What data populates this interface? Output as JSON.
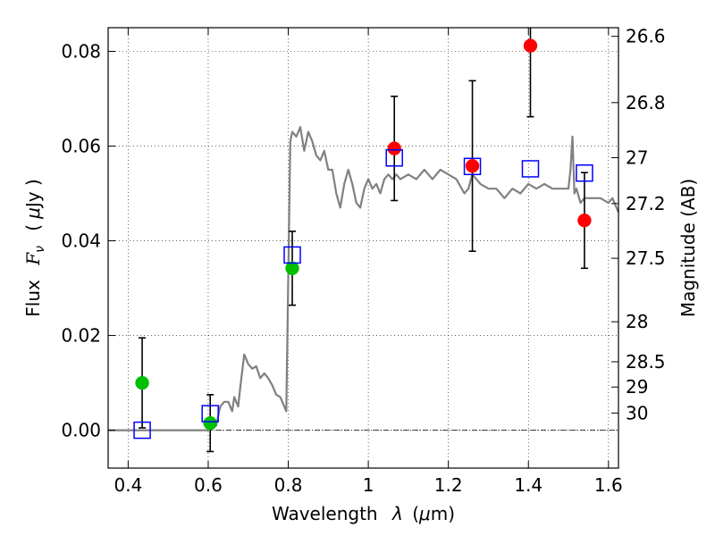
{
  "chart_data": {
    "type": "scatter",
    "xlabel": "Wavelength",
    "xlabel_symbol": "λ",
    "xlabel_unit_open": "(",
    "xlabel_unit_mu": "μ",
    "xlabel_unit_rest": "m)",
    "ylabel": "Flux",
    "ylabel_symbol": "F",
    "ylabel_sub": "ν",
    "ylabel_unit_open": "(",
    "ylabel_unit_mu": "μ",
    "ylabel_unit_rest": "Jy )",
    "y2label": "Magnitude (AB)",
    "xlim": [
      0.35,
      1.625
    ],
    "ylim": [
      -0.008,
      0.085
    ],
    "grid": true,
    "xticks": [
      {
        "value": 0.4,
        "label": "0.4"
      },
      {
        "value": 0.6,
        "label": "0.6"
      },
      {
        "value": 0.8,
        "label": "0.8"
      },
      {
        "value": 1.0,
        "label": "1"
      },
      {
        "value": 1.2,
        "label": "1.2"
      },
      {
        "value": 1.4,
        "label": "1.4"
      },
      {
        "value": 1.6,
        "label": "1.6"
      }
    ],
    "yticks": [
      {
        "value": 0.0,
        "label": "0.00"
      },
      {
        "value": 0.02,
        "label": "0.02"
      },
      {
        "value": 0.04,
        "label": "0.04"
      },
      {
        "value": 0.06,
        "label": "0.06"
      },
      {
        "value": 0.08,
        "label": "0.08"
      }
    ],
    "y2ticks": [
      {
        "value": 26.6,
        "label": "26.6"
      },
      {
        "value": 26.8,
        "label": "26.8"
      },
      {
        "value": 27.0,
        "label": "27"
      },
      {
        "value": 27.2,
        "label": "27.2"
      },
      {
        "value": 27.5,
        "label": "27.5"
      },
      {
        "value": 28.0,
        "label": "28"
      },
      {
        "value": 28.5,
        "label": "28.5"
      },
      {
        "value": 29.0,
        "label": "29"
      },
      {
        "value": 30.0,
        "label": "30"
      }
    ],
    "colors": {
      "model": "#808080",
      "blue_squares": "#0000ff",
      "green_points": "#00bf00",
      "red_points": "#ff0000",
      "errorbars": "#000000",
      "zero_line": "#000000"
    },
    "series": [
      {
        "kind": "line",
        "x": [
          0.35,
          0.58,
          0.6,
          0.62,
          0.63,
          0.64,
          0.65,
          0.66,
          0.665,
          0.67,
          0.675,
          0.68,
          0.69,
          0.7,
          0.71,
          0.72,
          0.73,
          0.74,
          0.75,
          0.76,
          0.77,
          0.78,
          0.79,
          0.795,
          0.8,
          0.805,
          0.81,
          0.82,
          0.83,
          0.84,
          0.85,
          0.86,
          0.87,
          0.88,
          0.89,
          0.9,
          0.91,
          0.92,
          0.93,
          0.94,
          0.95,
          0.96,
          0.97,
          0.98,
          0.99,
          1.0,
          1.01,
          1.02,
          1.03,
          1.04,
          1.05,
          1.06,
          1.07,
          1.08,
          1.1,
          1.12,
          1.14,
          1.16,
          1.18,
          1.2,
          1.22,
          1.24,
          1.25,
          1.26,
          1.27,
          1.28,
          1.3,
          1.32,
          1.34,
          1.36,
          1.38,
          1.4,
          1.42,
          1.44,
          1.46,
          1.48,
          1.5,
          1.505,
          1.51,
          1.515,
          1.52,
          1.53,
          1.54,
          1.56,
          1.58,
          1.6,
          1.61,
          1.625
        ],
        "y": [
          0.0,
          0.0,
          0.0,
          0.001,
          0.005,
          0.006,
          0.006,
          0.004,
          0.007,
          0.006,
          0.005,
          0.009,
          0.016,
          0.014,
          0.013,
          0.0135,
          0.011,
          0.012,
          0.011,
          0.0095,
          0.0075,
          0.007,
          0.005,
          0.004,
          0.032,
          0.061,
          0.063,
          0.062,
          0.064,
          0.059,
          0.063,
          0.061,
          0.058,
          0.057,
          0.059,
          0.055,
          0.055,
          0.05,
          0.047,
          0.052,
          0.055,
          0.052,
          0.048,
          0.047,
          0.051,
          0.053,
          0.051,
          0.052,
          0.05,
          0.053,
          0.054,
          0.053,
          0.054,
          0.053,
          0.054,
          0.053,
          0.055,
          0.053,
          0.055,
          0.054,
          0.053,
          0.05,
          0.051,
          0.054,
          0.053,
          0.052,
          0.051,
          0.051,
          0.049,
          0.051,
          0.05,
          0.052,
          0.051,
          0.052,
          0.051,
          0.051,
          0.051,
          0.055,
          0.062,
          0.05,
          0.051,
          0.048,
          0.049,
          0.049,
          0.049,
          0.048,
          0.049,
          0.046
        ]
      },
      {
        "kind": "squares",
        "x": [
          0.435,
          0.605,
          0.81,
          1.065,
          1.26,
          1.405,
          1.54
        ],
        "y": [
          0.0,
          0.0035,
          0.037,
          0.0575,
          0.0557,
          0.0552,
          0.0543
        ]
      },
      {
        "kind": "points-errorbars",
        "color_key": "green_points",
        "x": [
          0.435,
          0.605,
          0.81
        ],
        "y": [
          0.01,
          0.0015,
          0.0342
        ],
        "err": [
          0.0095,
          0.006,
          0.0078
        ]
      },
      {
        "kind": "points-errorbars",
        "color_key": "red_points",
        "x": [
          1.065,
          1.26,
          1.405,
          1.54
        ],
        "y": [
          0.0595,
          0.0558,
          0.0812,
          0.0443
        ],
        "err": [
          0.011,
          0.018,
          0.015,
          0.0101
        ]
      }
    ]
  }
}
